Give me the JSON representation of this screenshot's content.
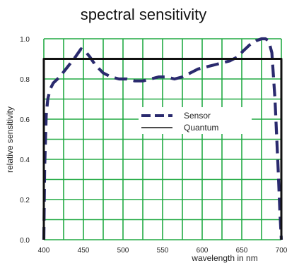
{
  "chart_data": {
    "type": "line",
    "title": "spectral sensitivity",
    "xlabel": "wavelength in nm",
    "ylabel": "relative sensitivity",
    "xlim": [
      400,
      700
    ],
    "ylim": [
      0.0,
      1.0
    ],
    "x_ticks": [
      400,
      450,
      500,
      550,
      600,
      650,
      700
    ],
    "y_ticks": [
      0.0,
      0.2,
      0.4,
      0.6,
      0.8,
      1.0
    ],
    "y_tick_labels": [
      "0.0",
      "0.2",
      "0.4",
      "0.6",
      "0.8",
      "1.0"
    ],
    "grid": true,
    "legend_position": "center-right",
    "colors": {
      "grid": "#22aa44",
      "sensor": "#2a2a6e",
      "quantum": "#111111"
    },
    "series": [
      {
        "name": "Sensor",
        "style": "dashed",
        "x": [
          400,
          401,
          403,
          405,
          408,
          412,
          420,
          430,
          440,
          447,
          452,
          458,
          465,
          475,
          485,
          495,
          505,
          515,
          525,
          535,
          545,
          555,
          565,
          575,
          585,
          595,
          605,
          615,
          625,
          635,
          645,
          652,
          660,
          668,
          675,
          680,
          684,
          688,
          692,
          696,
          698,
          700
        ],
        "y": [
          0.0,
          0.35,
          0.62,
          0.7,
          0.75,
          0.78,
          0.81,
          0.86,
          0.91,
          0.95,
          0.94,
          0.91,
          0.87,
          0.83,
          0.81,
          0.8,
          0.8,
          0.79,
          0.79,
          0.8,
          0.81,
          0.81,
          0.8,
          0.81,
          0.83,
          0.85,
          0.86,
          0.87,
          0.88,
          0.89,
          0.91,
          0.94,
          0.97,
          0.99,
          1.0,
          1.0,
          0.99,
          0.93,
          0.7,
          0.35,
          0.15,
          0.0
        ]
      },
      {
        "name": "Quantum",
        "style": "solid",
        "x": [
          400,
          400,
          700,
          700
        ],
        "y": [
          0.0,
          0.9,
          0.9,
          0.0
        ]
      }
    ]
  }
}
